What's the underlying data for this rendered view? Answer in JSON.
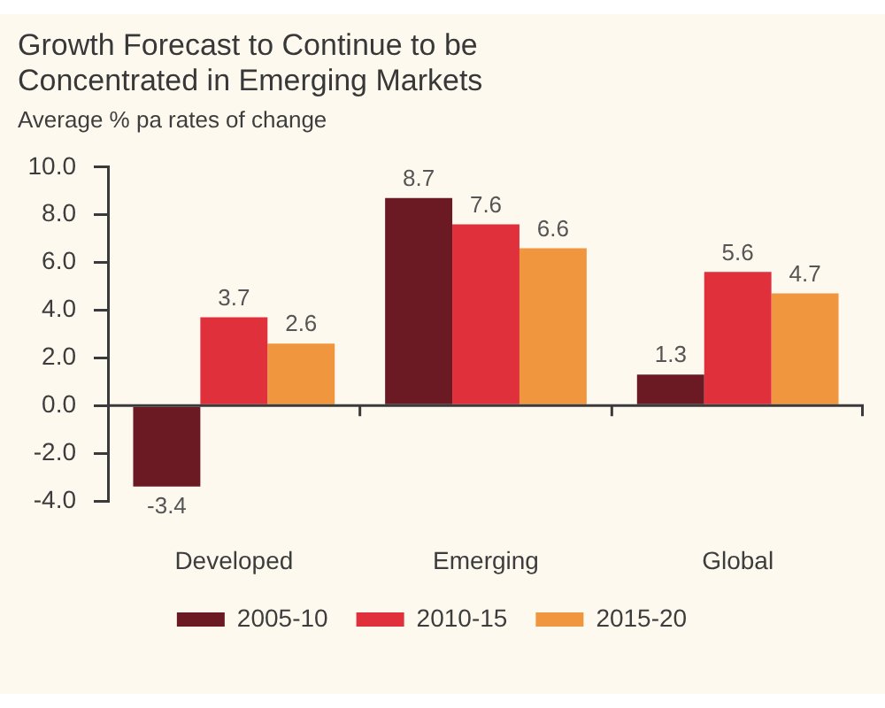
{
  "chart_data": {
    "type": "bar",
    "title": "Growth Forecast to Continue to be Concentrated in Emerging Markets",
    "subtitle": "Average % pa rates of change",
    "categories": [
      "Developed",
      "Emerging",
      "Global"
    ],
    "series": [
      {
        "name": "2005-10",
        "color": "#6b1a24",
        "values": [
          -3.4,
          8.7,
          1.3
        ]
      },
      {
        "name": "2010-15",
        "color": "#e0303c",
        "values": [
          3.7,
          7.6,
          5.6
        ]
      },
      {
        "name": "2015-20",
        "color": "#ef963e",
        "values": [
          2.6,
          6.6,
          4.7
        ]
      }
    ],
    "ylim": [
      -4,
      10
    ],
    "yticks": [
      {
        "value": -4,
        "label": "-4.0"
      },
      {
        "value": -2,
        "label": "-2.0"
      },
      {
        "value": 0,
        "label": "0.0"
      },
      {
        "value": 2,
        "label": "2.0"
      },
      {
        "value": 4,
        "label": "4.0"
      },
      {
        "value": 6,
        "label": "6.0"
      },
      {
        "value": 8,
        "label": "8.0"
      },
      {
        "value": 10,
        "label": "10.0"
      }
    ],
    "data_labels": true,
    "legend": "bottom"
  }
}
